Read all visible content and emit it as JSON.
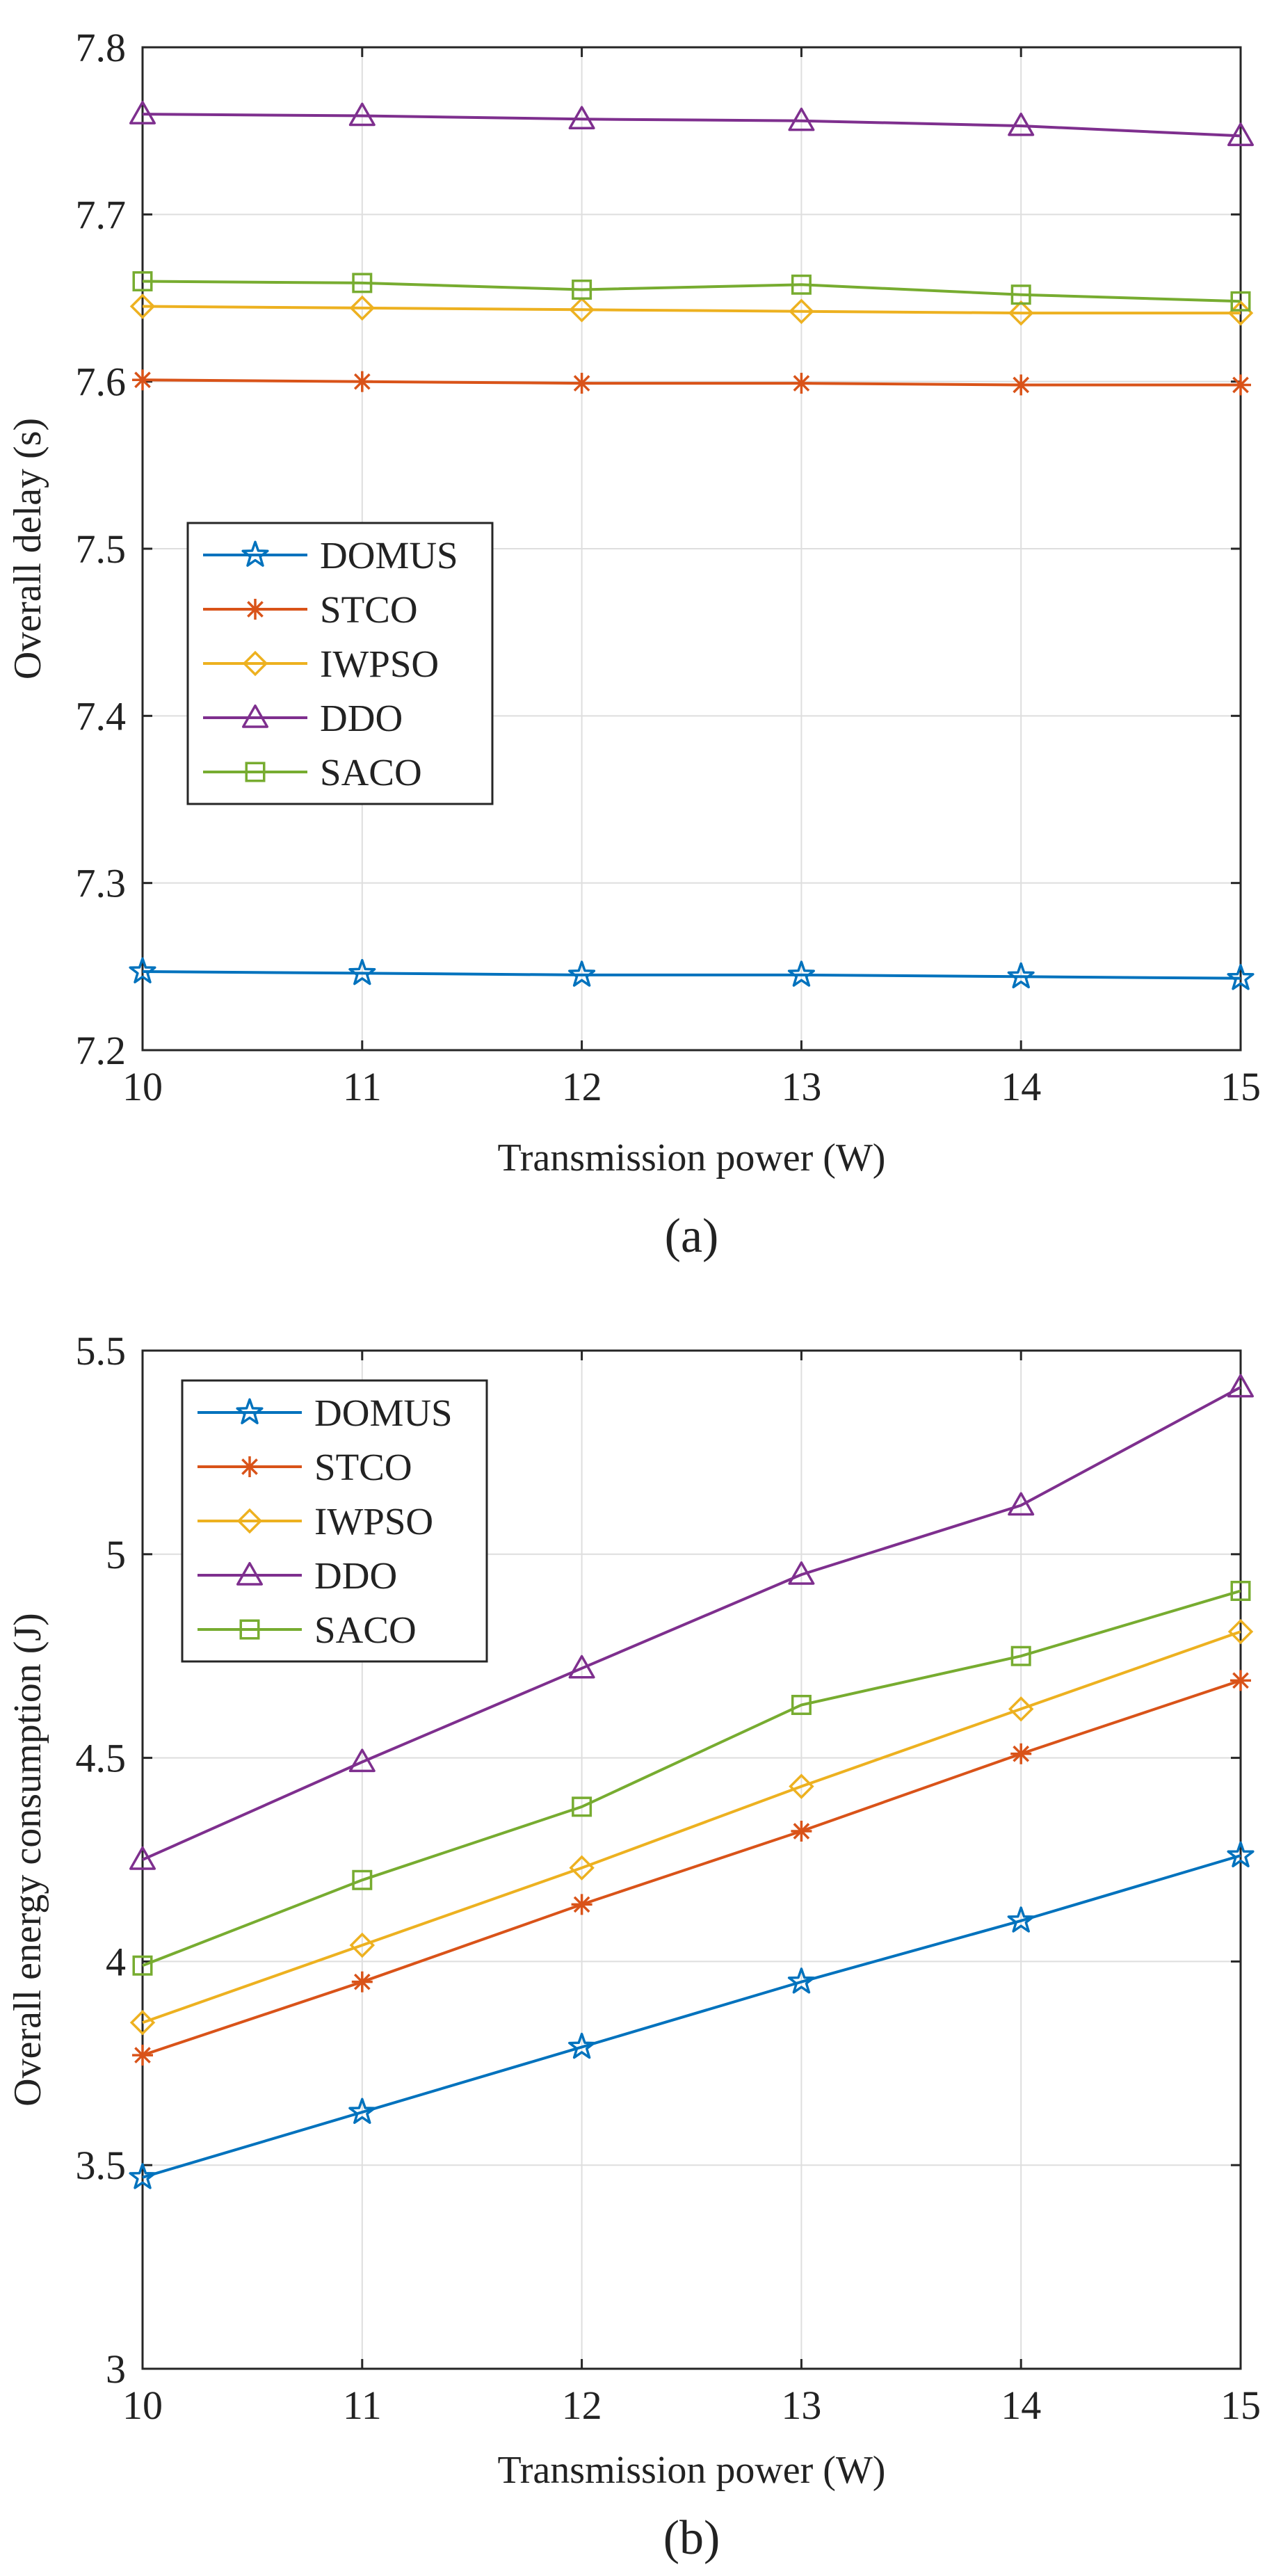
{
  "chart_data": [
    {
      "type": "line",
      "panel_label": "(a)",
      "xlabel": "Transmission power (W)",
      "ylabel": "Overall delay (s)",
      "x": [
        10,
        11,
        12,
        13,
        14,
        15
      ],
      "xlim": [
        10,
        15
      ],
      "ylim": [
        7.2,
        7.8
      ],
      "xticks": [
        "10",
        "11",
        "12",
        "13",
        "14",
        "15"
      ],
      "yticks": [
        "7.2",
        "7.3",
        "7.4",
        "7.5",
        "7.6",
        "7.7",
        "7.8"
      ],
      "grid": true,
      "legend_position": "center-left",
      "series": [
        {
          "name": "DOMUS",
          "color": "#0072BD",
          "marker": "star",
          "values": [
            7.247,
            7.246,
            7.245,
            7.245,
            7.244,
            7.243
          ]
        },
        {
          "name": "STCO",
          "color": "#D95319",
          "marker": "asterisk",
          "values": [
            7.601,
            7.6,
            7.599,
            7.599,
            7.598,
            7.598
          ]
        },
        {
          "name": "IWPSO",
          "color": "#EDB120",
          "marker": "diamond",
          "values": [
            7.645,
            7.644,
            7.643,
            7.642,
            7.641,
            7.641
          ]
        },
        {
          "name": "DDO",
          "color": "#7E2F8E",
          "marker": "triangle",
          "values": [
            7.76,
            7.759,
            7.757,
            7.756,
            7.753,
            7.747
          ]
        },
        {
          "name": "SACO",
          "color": "#77AC30",
          "marker": "square",
          "values": [
            7.66,
            7.659,
            7.655,
            7.658,
            7.652,
            7.648
          ]
        }
      ]
    },
    {
      "type": "line",
      "panel_label": "(b)",
      "xlabel": "Transmission power (W)",
      "ylabel": "Overall energy consumption (J)",
      "x": [
        10,
        11,
        12,
        13,
        14,
        15
      ],
      "xlim": [
        10,
        15
      ],
      "ylim": [
        3,
        5.5
      ],
      "xticks": [
        "10",
        "11",
        "12",
        "13",
        "14",
        "15"
      ],
      "yticks": [
        "3",
        "3.5",
        "4",
        "4.5",
        "5",
        "5.5"
      ],
      "grid": true,
      "legend_position": "top-left",
      "series": [
        {
          "name": "DOMUS",
          "color": "#0072BD",
          "marker": "star",
          "values": [
            3.47,
            3.63,
            3.79,
            3.95,
            4.1,
            4.26
          ]
        },
        {
          "name": "STCO",
          "color": "#D95319",
          "marker": "asterisk",
          "values": [
            3.77,
            3.95,
            4.14,
            4.32,
            4.51,
            4.69
          ]
        },
        {
          "name": "IWPSO",
          "color": "#EDB120",
          "marker": "diamond",
          "values": [
            3.85,
            4.04,
            4.23,
            4.43,
            4.62,
            4.81
          ]
        },
        {
          "name": "DDO",
          "color": "#7E2F8E",
          "marker": "triangle",
          "values": [
            4.25,
            4.49,
            4.72,
            4.95,
            5.12,
            5.41
          ]
        },
        {
          "name": "SACO",
          "color": "#77AC30",
          "marker": "square",
          "values": [
            3.99,
            4.2,
            4.38,
            4.63,
            4.75,
            4.91
          ]
        }
      ]
    }
  ]
}
